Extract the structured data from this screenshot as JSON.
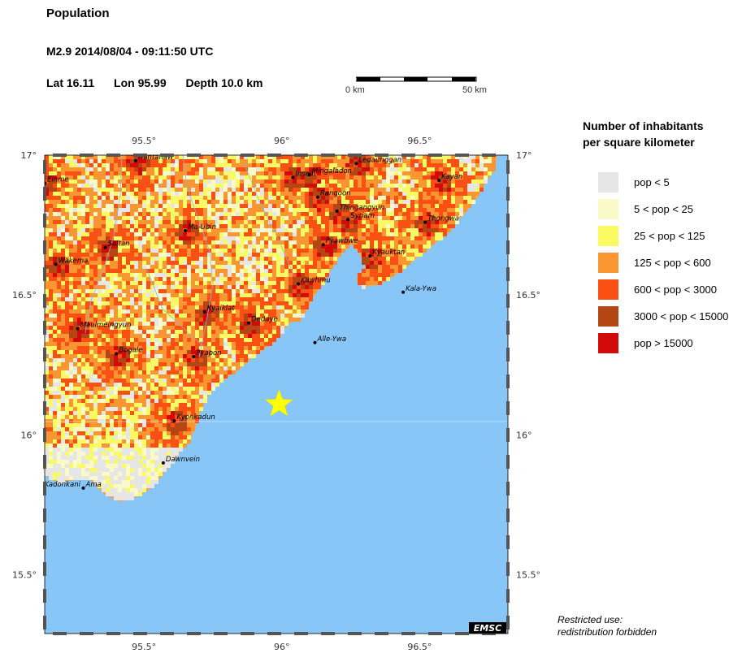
{
  "header": {
    "title": "Population",
    "event": "M2.9  2014/08/04 - 09:11:50 UTC",
    "lat": "Lat 16.11",
    "lon": "Lon  95.99",
    "depth": "Depth  10.0 km"
  },
  "scale_bar": {
    "left_label": "0 km",
    "right_label": "50 km"
  },
  "map": {
    "lon_ticks": [
      "95.5°",
      "96°",
      "96.5°"
    ],
    "lat_ticks": [
      "17°",
      "16.5°",
      "16°",
      "15.5°"
    ],
    "epicenter": {
      "lat": 16.11,
      "lon": 95.99
    },
    "towns": [
      {
        "name": "Hantanaw",
        "lon": 95.47,
        "lat": 16.98
      },
      {
        "name": "Einme",
        "lon": 95.14,
        "lat": 16.9
      },
      {
        "name": "Insein",
        "lon": 96.04,
        "lat": 16.92
      },
      {
        "name": "Mingaladon",
        "lon": 96.1,
        "lat": 16.93
      },
      {
        "name": "Ledaunggan",
        "lon": 96.27,
        "lat": 16.97
      },
      {
        "name": "Kayan",
        "lon": 96.57,
        "lat": 16.91
      },
      {
        "name": "Rangoon",
        "lon": 96.13,
        "lat": 16.85
      },
      {
        "name": "Thingangyun",
        "lon": 96.2,
        "lat": 16.8
      },
      {
        "name": "Syriam",
        "lon": 96.24,
        "lat": 16.77
      },
      {
        "name": "Thongwa",
        "lon": 96.52,
        "lat": 16.76
      },
      {
        "name": "Ma-Ubin",
        "lon": 95.65,
        "lat": 16.73
      },
      {
        "name": "Saltan",
        "lon": 95.36,
        "lat": 16.67
      },
      {
        "name": "Kyauktan",
        "lon": 96.32,
        "lat": 16.64
      },
      {
        "name": "Wakema",
        "lon": 95.18,
        "lat": 16.61
      },
      {
        "name": "Pyawbwe",
        "lon": 96.15,
        "lat": 16.68
      },
      {
        "name": "Kawhmu",
        "lon": 96.06,
        "lat": 16.54
      },
      {
        "name": "Kala-Ywa",
        "lon": 96.44,
        "lat": 16.51
      },
      {
        "name": "Kyaiklat",
        "lon": 95.72,
        "lat": 16.44
      },
      {
        "name": "Dedaye",
        "lon": 95.88,
        "lat": 16.4
      },
      {
        "name": "Maulmeingyun",
        "lon": 95.26,
        "lat": 16.38
      },
      {
        "name": "Alle-Ywa",
        "lon": 96.12,
        "lat": 16.33
      },
      {
        "name": "Bogale",
        "lon": 95.4,
        "lat": 16.29
      },
      {
        "name": "Pyapon",
        "lon": 95.68,
        "lat": 16.28
      },
      {
        "name": "Kyonkadun",
        "lon": 95.61,
        "lat": 16.05
      },
      {
        "name": "Dawnvein",
        "lon": 95.57,
        "lat": 15.9
      },
      {
        "name": "Kadonkani",
        "lon": 95.13,
        "lat": 15.81
      },
      {
        "name": "Ama",
        "lon": 95.28,
        "lat": 15.81
      }
    ],
    "colors": {
      "sea": "#88c6f8",
      "star": "#ffff00"
    },
    "watermark": "EMSC"
  },
  "legend": {
    "title_line1": "Number of inhabitants",
    "title_line2": "per square kilometer",
    "items": [
      {
        "label": "pop < 5",
        "color": "#e6e6e6"
      },
      {
        "label": "5 < pop < 25",
        "color": "#fafac8"
      },
      {
        "label": "25 < pop < 125",
        "color": "#fafa64"
      },
      {
        "label": "125 < pop < 600",
        "color": "#fa9632"
      },
      {
        "label": "600 < pop < 3000",
        "color": "#fa5014"
      },
      {
        "label": "3000 < pop < 15000",
        "color": "#b44614"
      },
      {
        "label": "pop > 15000",
        "color": "#d20a0a"
      }
    ]
  },
  "footer": {
    "line1": "Restricted use:",
    "line2": "redistribution forbidden"
  }
}
